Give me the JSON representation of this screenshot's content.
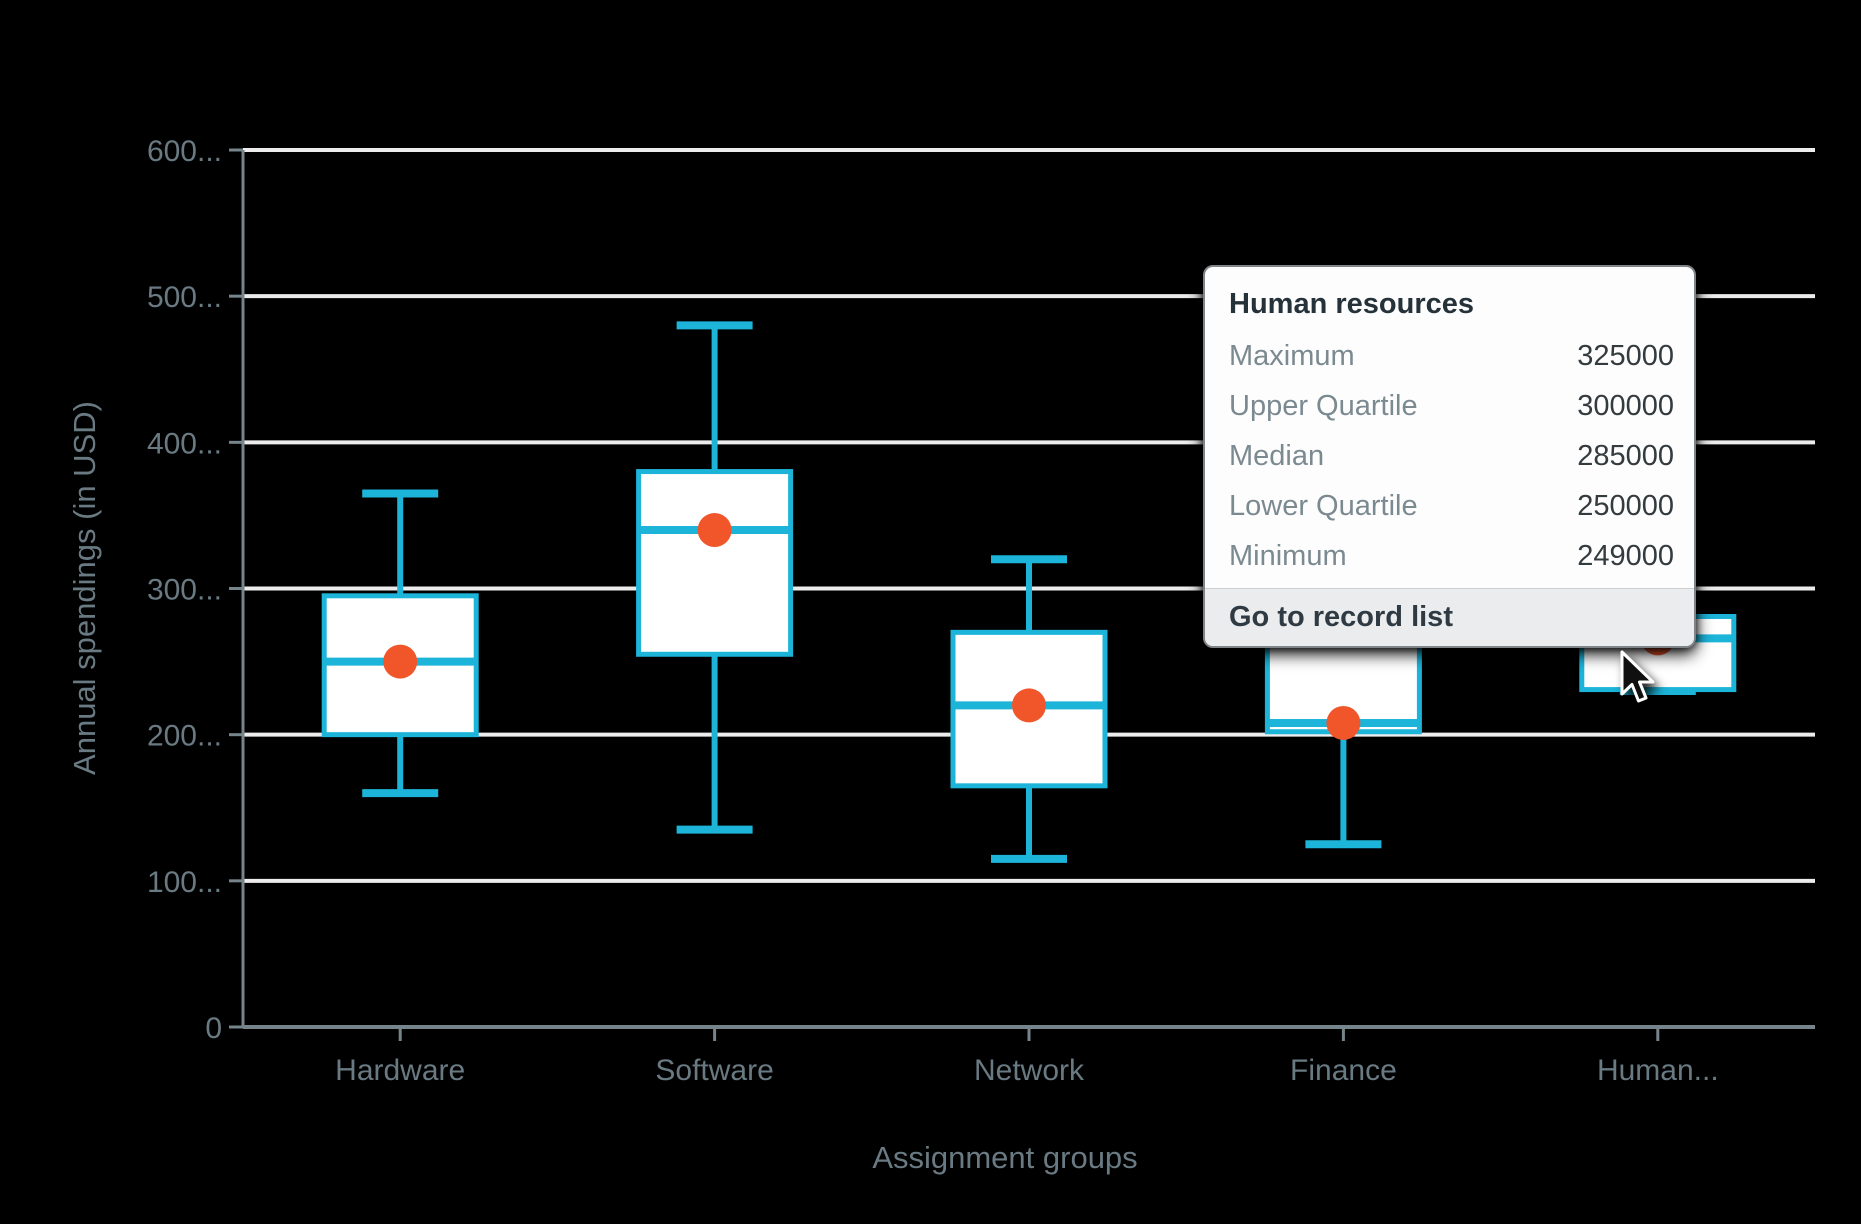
{
  "chart_data": {
    "type": "boxplot",
    "xlabel": "Assignment groups",
    "ylabel": "Annual spendings (in USD)",
    "ylim": [
      0,
      600000
    ],
    "y_tick_step": 100000,
    "y_tick_labels": [
      "0",
      "100...",
      "200...",
      "300...",
      "400...",
      "500...",
      "600..."
    ],
    "grid": true,
    "categories": [
      "Hardware",
      "Software",
      "Network",
      "Finance",
      "Human resources"
    ],
    "x_tick_labels": [
      "Hardware",
      "Software",
      "Network",
      "Finance",
      "Human..."
    ],
    "series": [
      {
        "name": "Hardware",
        "min": 160000,
        "q1": 200000,
        "median": 250000,
        "q3": 295000,
        "max": 365000,
        "mean": 250000
      },
      {
        "name": "Software",
        "min": 135000,
        "q1": 255000,
        "median": 340000,
        "q3": 380000,
        "max": 480000,
        "mean": 340000
      },
      {
        "name": "Network",
        "min": 115000,
        "q1": 165000,
        "median": 220000,
        "q3": 270000,
        "max": 320000,
        "mean": 220000
      },
      {
        "name": "Finance",
        "min": 125000,
        "q1": 202000,
        "median": 208000,
        "q3": 275000,
        "max": 310000,
        "mean": 208000
      },
      {
        "name": "Human resources",
        "min": 249000,
        "q1": 250000,
        "median": 285000,
        "q3": 300000,
        "max": 325000,
        "mean": 285000
      }
    ],
    "colors": {
      "box_stroke": "#1cb4d9",
      "box_fill": "#ffffff",
      "mean_dot": "#f1562b",
      "gridline": "#ececec",
      "axis": "#76858c",
      "tick_text": "#697a83",
      "background": "#000000"
    }
  },
  "tooltip": {
    "title": "Human resources",
    "rows": [
      {
        "label": "Maximum",
        "value": "325000"
      },
      {
        "label": "Upper Quartile",
        "value": "300000"
      },
      {
        "label": "Median",
        "value": "285000"
      },
      {
        "label": "Lower Quartile",
        "value": "250000"
      },
      {
        "label": "Minimum",
        "value": "249000"
      }
    ],
    "footer_action": "Go to record list"
  }
}
